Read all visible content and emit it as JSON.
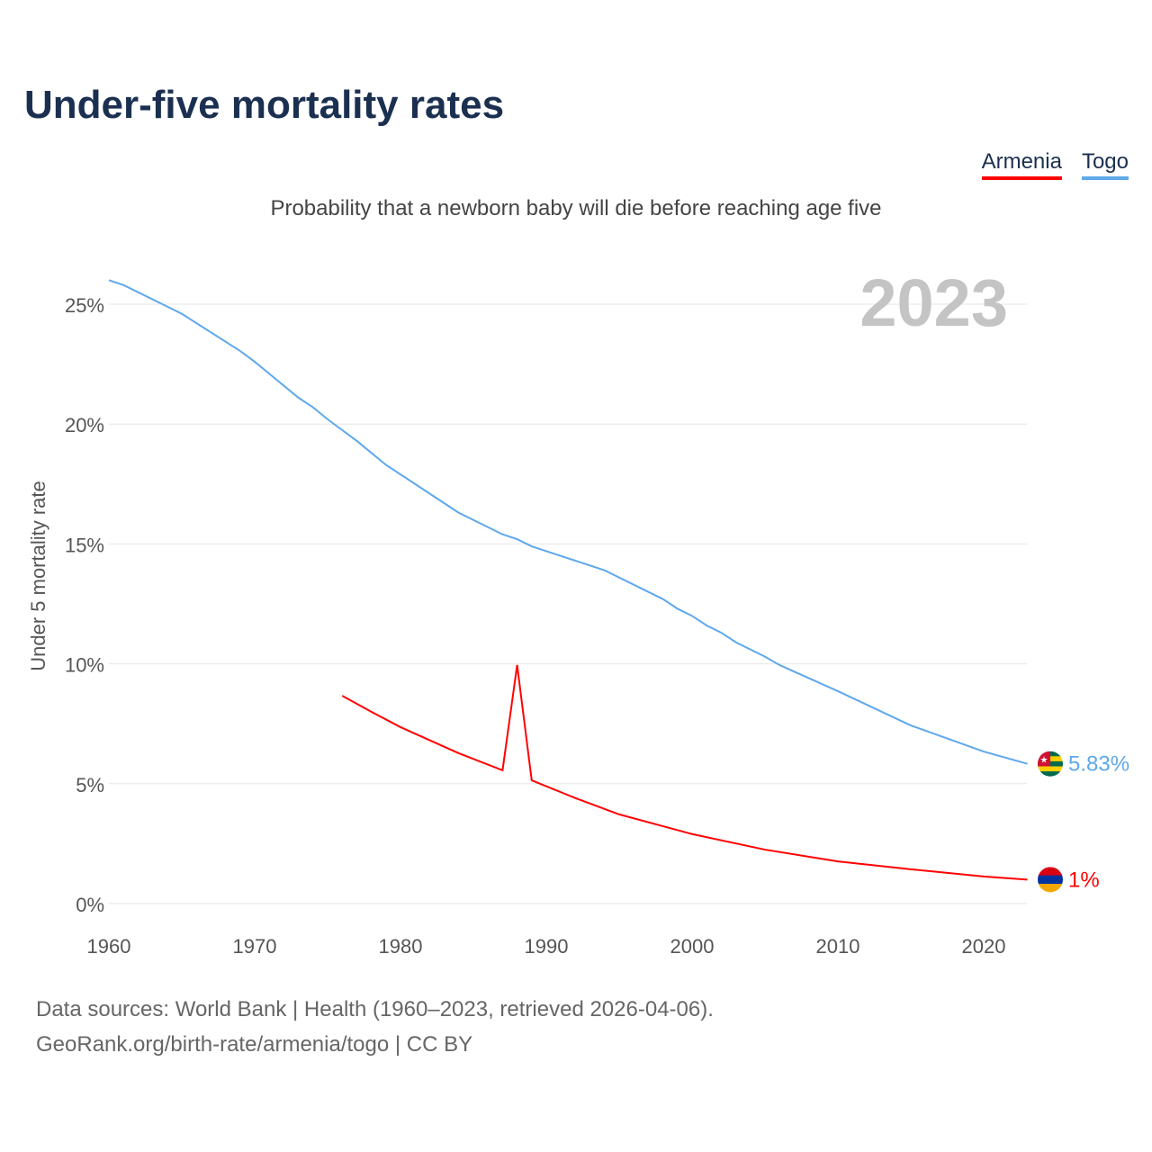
{
  "title": "Under-five mortality rates",
  "subtitle": "Probability that a newborn baby will die before reaching age five",
  "legend": [
    {
      "name": "Armenia",
      "color": "#ff0000"
    },
    {
      "name": "Togo",
      "color": "#5ea8ec"
    }
  ],
  "year_label": "2023",
  "sources": [
    "Data sources: World Bank | Health (1960–2023, retrieved 2026-04-06).",
    "GeoRank.org/birth-rate/armenia/togo | CC BY"
  ],
  "chart_data": {
    "type": "line",
    "title": "Under-five mortality rates",
    "xlabel": "",
    "ylabel": "Under 5 mortality rate",
    "xlim": [
      1960,
      2023
    ],
    "ylim": [
      0,
      26.5
    ],
    "xticks": [
      1960,
      1970,
      1980,
      1990,
      2000,
      2010,
      2020
    ],
    "yticks": [
      {
        "v": 0,
        "label": "0%"
      },
      {
        "v": 5,
        "label": "5%"
      },
      {
        "v": 10,
        "label": "10%"
      },
      {
        "v": 15,
        "label": "15%"
      },
      {
        "v": 20,
        "label": "20%"
      },
      {
        "v": 25,
        "label": "25%"
      }
    ],
    "grid": true,
    "series": [
      {
        "name": "Togo",
        "color": "#5ea8ec",
        "end_label": "5.83%",
        "points": [
          [
            1960,
            26.0
          ],
          [
            1961,
            25.8
          ],
          [
            1965,
            24.6
          ],
          [
            1969,
            23.05
          ],
          [
            1970,
            22.6
          ],
          [
            1971,
            22.1
          ],
          [
            1973,
            21.1
          ],
          [
            1974,
            20.7
          ],
          [
            1975,
            20.2
          ],
          [
            1977,
            19.3
          ],
          [
            1978,
            18.8
          ],
          [
            1979,
            18.3
          ],
          [
            1984,
            16.3
          ],
          [
            1987,
            15.4
          ],
          [
            1988,
            15.2
          ],
          [
            1989,
            14.9
          ],
          [
            1994,
            13.9
          ],
          [
            1998,
            12.7
          ],
          [
            1999,
            12.3
          ],
          [
            2000,
            12.0
          ],
          [
            2001,
            11.6
          ],
          [
            2002,
            11.3
          ],
          [
            2003,
            10.9
          ],
          [
            2005,
            10.3
          ],
          [
            2006,
            9.95
          ],
          [
            2010,
            8.86
          ],
          [
            2015,
            7.43
          ],
          [
            2020,
            6.34
          ],
          [
            2023,
            5.83
          ]
        ]
      },
      {
        "name": "Armenia",
        "color": "#ff0000",
        "end_label": "1%",
        "points": [
          [
            1976,
            8.67
          ],
          [
            1978,
            8.0
          ],
          [
            1980,
            7.36
          ],
          [
            1984,
            6.27
          ],
          [
            1987,
            5.56
          ],
          [
            1988,
            9.95
          ],
          [
            1989,
            5.14
          ],
          [
            1992,
            4.4
          ],
          [
            1995,
            3.72
          ],
          [
            2000,
            2.9
          ],
          [
            2005,
            2.25
          ],
          [
            2010,
            1.76
          ],
          [
            2015,
            1.43
          ],
          [
            2020,
            1.13
          ],
          [
            2023,
            1.0
          ]
        ]
      }
    ]
  }
}
